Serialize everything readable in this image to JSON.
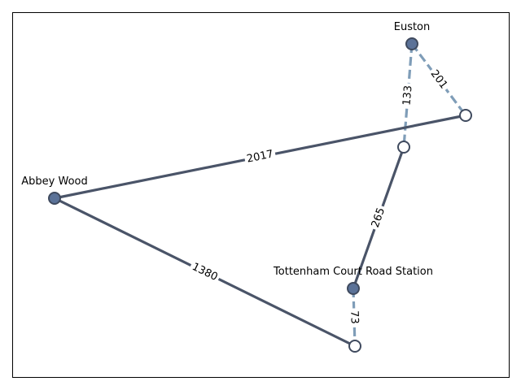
{
  "colors": {
    "solid_edge": "#4a5468",
    "dashed_edge": "#7f9db8",
    "named_node_fill": "#5b7298",
    "named_node_stroke": "#3f4a5e",
    "waypoint_fill": "#ffffff",
    "waypoint_stroke": "#3f4a5e",
    "frame": "#000000"
  },
  "nodes": [
    {
      "id": "euston",
      "label": "Euston",
      "named": true
    },
    {
      "id": "abbey-wood",
      "label": "Abbey Wood",
      "named": true
    },
    {
      "id": "tottenham-court-road",
      "label": "Tottenham Court Road Station",
      "named": true
    },
    {
      "id": "waypoint-east",
      "label": "",
      "named": false
    },
    {
      "id": "waypoint-center",
      "label": "",
      "named": false
    },
    {
      "id": "waypoint-south",
      "label": "",
      "named": false
    }
  ],
  "edges": [
    {
      "id": "e1",
      "from": "euston",
      "to": "waypoint-east",
      "weight": "201",
      "style": "dashed"
    },
    {
      "id": "e2",
      "from": "euston",
      "to": "waypoint-center",
      "weight": "133",
      "style": "dashed"
    },
    {
      "id": "e3",
      "from": "abbey-wood",
      "to": "waypoint-east",
      "weight": "2017",
      "style": "solid"
    },
    {
      "id": "e4",
      "from": "waypoint-center",
      "to": "tottenham-court-road",
      "weight": "265",
      "style": "solid"
    },
    {
      "id": "e5",
      "from": "abbey-wood",
      "to": "waypoint-south",
      "weight": "1380",
      "style": "solid"
    },
    {
      "id": "e6",
      "from": "tottenham-court-road",
      "to": "waypoint-south",
      "weight": "73",
      "style": "dashed"
    }
  ]
}
